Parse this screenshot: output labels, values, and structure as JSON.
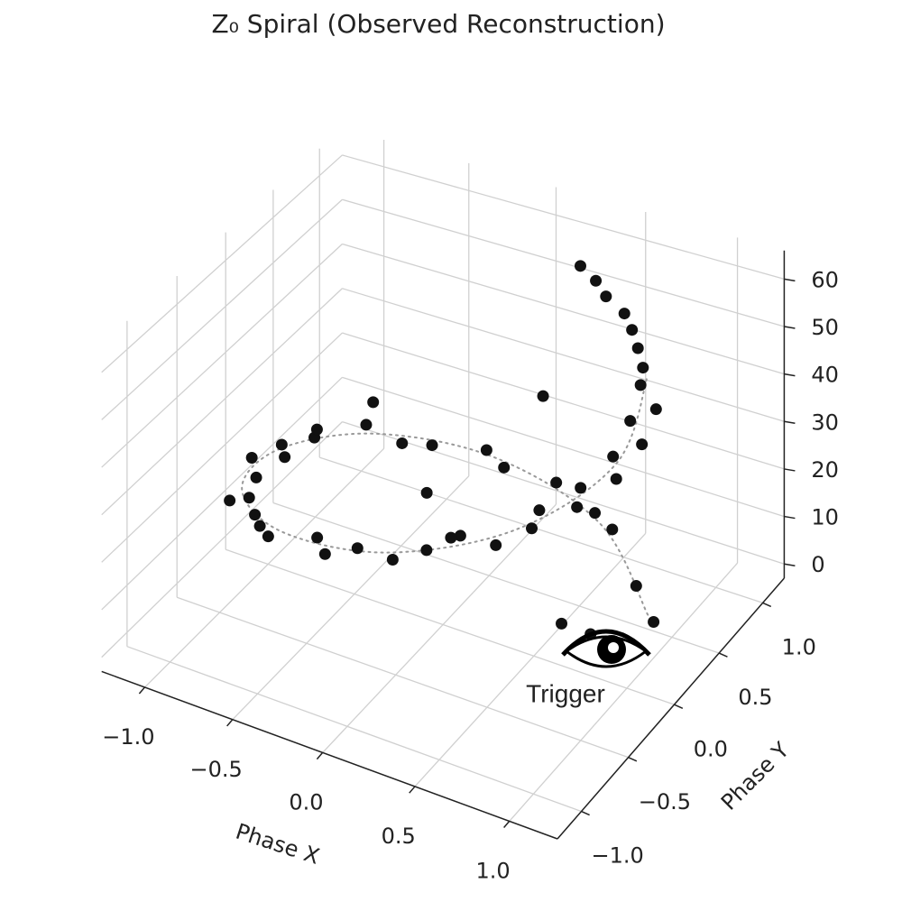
{
  "chart_data": {
    "type": "scatter3d",
    "title": "Z₀ Spiral (Observed Reconstruction)",
    "xlabel": "Phase X",
    "ylabel": "Phase Y",
    "xlim": [
      -1.25,
      1.25
    ],
    "ylim": [
      -1.25,
      1.25
    ],
    "zlim": [
      -3,
      66
    ],
    "xticks": [
      {
        "value": -1,
        "label": "−1.0"
      },
      {
        "value": -0.5,
        "label": "−0.5"
      },
      {
        "value": 0,
        "label": "0.0"
      },
      {
        "value": 0.5,
        "label": "0.5"
      },
      {
        "value": 1,
        "label": "1.0"
      }
    ],
    "yticks": [
      {
        "value": -1,
        "label": "−1.0"
      },
      {
        "value": -0.5,
        "label": "−0.5"
      },
      {
        "value": 0,
        "label": "0.0"
      },
      {
        "value": 0.5,
        "label": "0.5"
      },
      {
        "value": 1,
        "label": "1.0"
      }
    ],
    "zticks": [
      0,
      10,
      20,
      30,
      40,
      50,
      60
    ],
    "grid": true,
    "points": {
      "color": "#111111",
      "x": [
        0.92,
        0.75,
        0.47,
        0.35,
        0.1,
        -0.15,
        -0.28,
        -0.5,
        -0.6,
        -0.82,
        -0.95,
        -1.02,
        -0.93,
        -1.05,
        -0.9,
        -0.8,
        -0.85,
        -0.66,
        -0.57,
        -0.45,
        -0.22,
        -0.1,
        0.03,
        0.26,
        0.38,
        0.5,
        0.7,
        0.8,
        0.78,
        0.94,
        0.9,
        1.03,
        0.95,
        1.04,
        0.92,
        1.0,
        0.86,
        0.82,
        0.74,
        0.66,
        0.58,
        0.45,
        0.36,
        0.25,
        0.6,
        -0.3,
        0.2,
        -0.5,
        0.4,
        1.1,
        -1.1
      ],
      "y": [
        0.46,
        0.62,
        0.93,
        0.98,
        1.05,
        0.96,
        1.02,
        0.84,
        0.7,
        0.72,
        0.4,
        0.18,
        0.05,
        -0.08,
        -0.3,
        -0.55,
        -0.66,
        -0.74,
        -0.85,
        -0.98,
        -0.9,
        -1.04,
        -0.95,
        -1.02,
        -0.9,
        -0.78,
        -0.8,
        -0.62,
        -0.5,
        -0.42,
        -0.3,
        -0.18,
        -0.05,
        0.08,
        0.2,
        0.32,
        0.44,
        0.55,
        0.66,
        0.76,
        0.84,
        0.9,
        0.97,
        1.02,
        0.1,
        0.4,
        -0.3,
        0.2,
        0.3,
        -0.6,
        0.7
      ],
      "z": [
        0,
        2,
        4,
        5,
        7,
        9,
        10,
        12,
        14,
        15,
        17,
        19,
        20,
        21,
        23,
        25,
        26,
        27,
        28,
        30,
        31,
        32,
        33,
        35,
        36,
        38,
        39,
        40,
        41,
        42,
        43,
        44,
        45,
        46,
        47,
        48,
        49,
        50,
        51,
        52,
        53,
        54,
        55,
        56,
        3,
        13,
        24,
        34,
        44,
        22,
        11
      ]
    },
    "spiral": {
      "color": "#999999",
      "style": "dotted",
      "x": [
        0.87,
        0.41,
        -0.21,
        -0.74,
        -0.99,
        -0.87,
        -0.41,
        0.21,
        0.74,
        0.99,
        0.87
      ],
      "y": [
        0.5,
        0.91,
        0.98,
        0.67,
        0.1,
        -0.5,
        -0.91,
        -0.98,
        -0.67,
        -0.1,
        0.5
      ],
      "z": [
        0,
        5,
        10,
        15,
        20,
        25,
        30,
        35,
        40,
        45,
        50
      ]
    },
    "annotation": {
      "text": "Trigger"
    }
  }
}
